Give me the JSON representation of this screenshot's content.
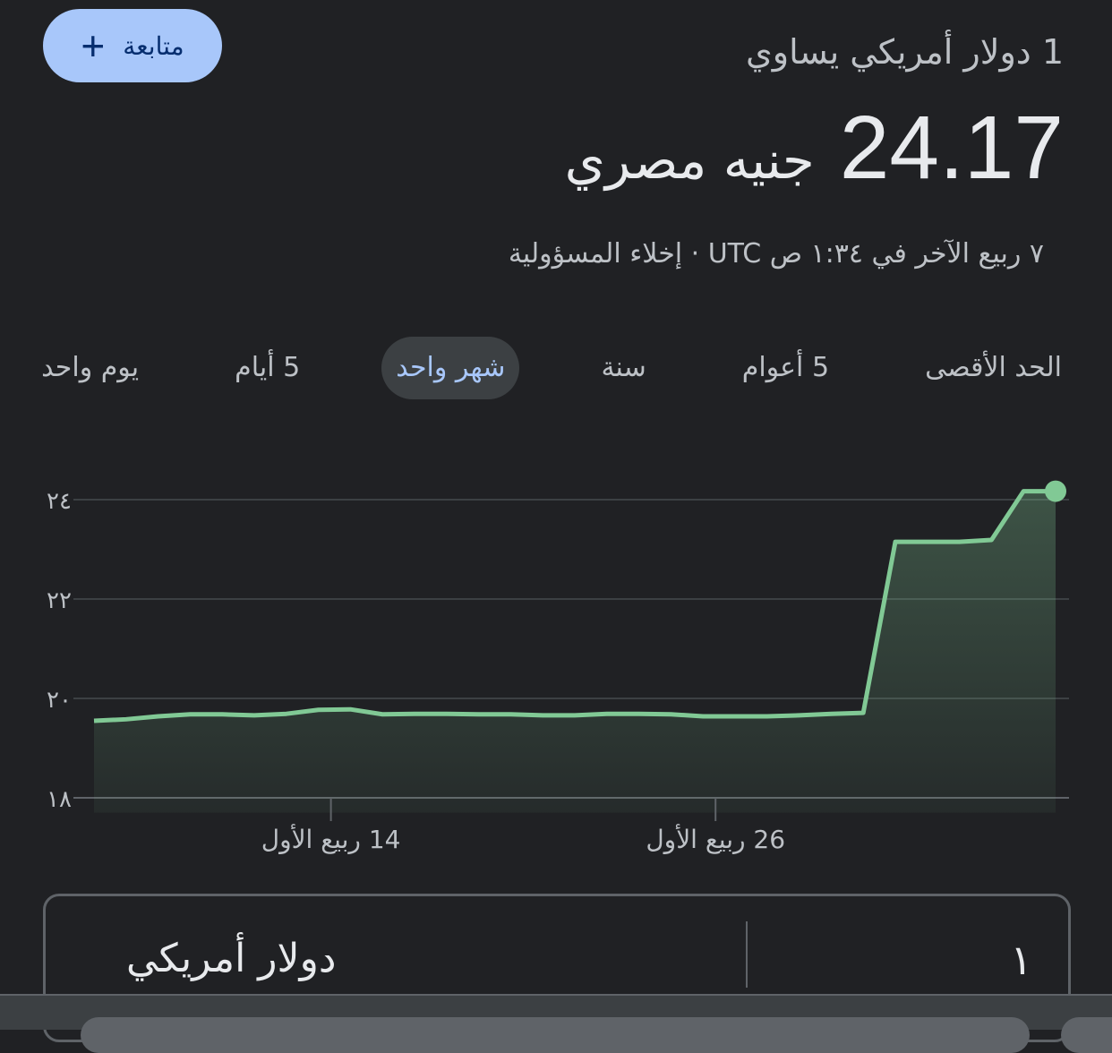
{
  "follow_button": {
    "label": "متابعة",
    "icon": "plus-icon"
  },
  "header": {
    "equals_text": "1 دولار أمريكي يساوي",
    "rate_value": "24.17",
    "rate_currency": "جنيه مصري",
    "meta": "٧ ربيع الآخر في ١:٣٤ ص UTC · إخلاء المسؤولية"
  },
  "tabs": [
    {
      "label": "يوم واحد",
      "selected": false
    },
    {
      "label": "5 أيام",
      "selected": false
    },
    {
      "label": "شهر واحد",
      "selected": true
    },
    {
      "label": "سنة",
      "selected": false
    },
    {
      "label": "5 أعوام",
      "selected": false
    },
    {
      "label": "الحد الأقصى",
      "selected": false
    }
  ],
  "colors": {
    "line": "#81c995",
    "accent": "#a8c7fa",
    "background": "#202124"
  },
  "chart_data": {
    "type": "area",
    "ylim": [
      18,
      24.4
    ],
    "y_ticks": [
      {
        "value": 18,
        "label": "١٨"
      },
      {
        "value": 20,
        "label": "٢٠"
      },
      {
        "value": 22,
        "label": "٢٢"
      },
      {
        "value": 24,
        "label": "٢٤"
      }
    ],
    "x_ticks": [
      {
        "index": 7,
        "label": "14 ربيع الأول"
      },
      {
        "index": 19,
        "label": "26 ربيع الأول"
      }
    ],
    "values": [
      19.55,
      19.58,
      19.64,
      19.68,
      19.68,
      19.66,
      19.69,
      19.77,
      19.78,
      19.68,
      19.69,
      19.69,
      19.68,
      19.68,
      19.66,
      19.66,
      19.69,
      19.69,
      19.68,
      19.64,
      19.64,
      19.64,
      19.66,
      19.69,
      19.71,
      23.15,
      23.15,
      23.15,
      23.19,
      24.17,
      24.17
    ],
    "grid": true
  },
  "converter": {
    "amount": "١",
    "unit": "دولار أمريكي"
  }
}
